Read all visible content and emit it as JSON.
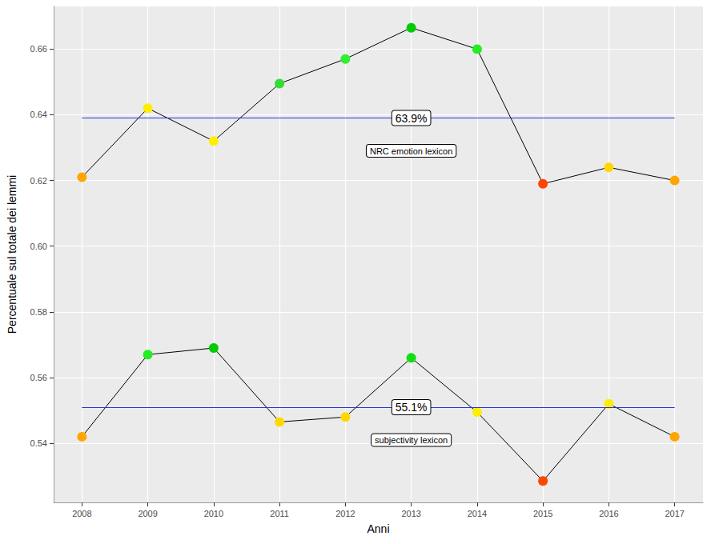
{
  "chart_data": {
    "type": "line",
    "x_label": "Anni",
    "y_label": "Percentuale sul totale dei lemmi",
    "x": [
      2008,
      2009,
      2010,
      2011,
      2012,
      2013,
      2014,
      2015,
      2016,
      2017
    ],
    "xlim": [
      2007.57,
      2017.43
    ],
    "xticks": [
      2008,
      2009,
      2010,
      2011,
      2012,
      2013,
      2014,
      2015,
      2016,
      2017
    ],
    "ylim": [
      0.522,
      0.673
    ],
    "yticks": [
      0.54,
      0.56,
      0.58,
      {
        "value": 0.6,
        "label": "0.60"
      },
      0.62,
      0.64,
      0.66
    ],
    "grid": true,
    "marker": "circle",
    "series": [
      {
        "name": "NRC emotion lexicon",
        "color": "#000000",
        "values": [
          0.621,
          0.642,
          0.632,
          0.6495,
          0.657,
          0.6665,
          0.66,
          0.619,
          0.624,
          0.62
        ],
        "colors": [
          "#FFA500",
          "#FFEE00",
          "#FFEE00",
          "#33DD33",
          "#33EE33",
          "#00CC00",
          "#22EE22",
          "#FF4500",
          "#FFD700",
          "#FFA500"
        ],
        "mean": 0.639,
        "mean_label": "63.9%"
      },
      {
        "name": "subjectivity lexicon",
        "color": "#000000",
        "values": [
          0.542,
          0.567,
          0.569,
          0.5465,
          0.548,
          0.566,
          0.5495,
          0.5285,
          0.552,
          0.542
        ],
        "colors": [
          "#FFA500",
          "#22EE22",
          "#00CC00",
          "#FFD700",
          "#FFD700",
          "#11DD11",
          "#FFEE00",
          "#FF4500",
          "#FFEE00",
          "#FFA500"
        ],
        "mean": 0.551,
        "mean_label": "55.1%"
      }
    ]
  }
}
